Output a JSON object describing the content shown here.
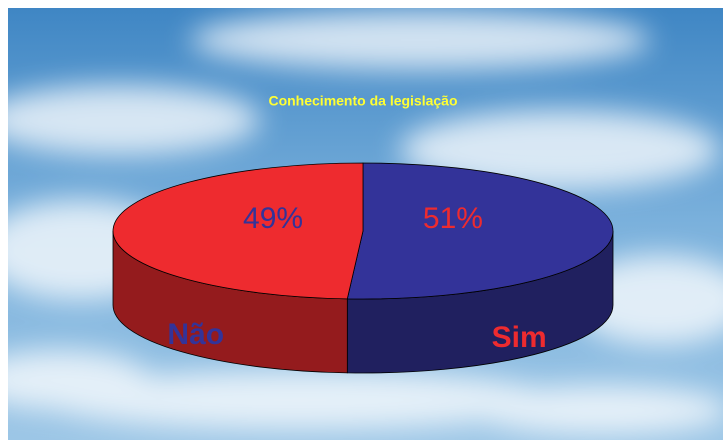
{
  "chart_data": {
    "type": "pie3d",
    "title": "Conhecimento da legislação",
    "categories": [
      "Sim",
      "Não"
    ],
    "values": [
      51,
      49
    ],
    "value_labels": [
      "51%",
      "49%"
    ],
    "colors": [
      "#333399",
      "#ee2b2f"
    ]
  }
}
